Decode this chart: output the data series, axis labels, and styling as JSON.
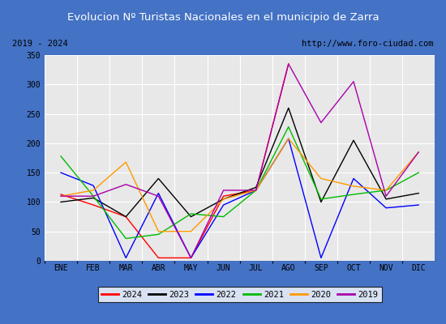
{
  "title": "Evolucion Nº Turistas Nacionales en el municipio de Zarra",
  "subtitle_left": "2019 - 2024",
  "subtitle_right": "http://www.foro-ciudad.com",
  "months": [
    "ENE",
    "FEB",
    "MAR",
    "ABR",
    "MAY",
    "JUN",
    "JUL",
    "AGO",
    "SEP",
    "OCT",
    "NOV",
    "DIC"
  ],
  "series": {
    "2024": [
      113,
      95,
      75,
      5,
      5,
      110,
      120,
      335,
      null,
      null,
      null,
      null
    ],
    "2023": [
      100,
      107,
      75,
      140,
      75,
      105,
      125,
      260,
      100,
      205,
      105,
      115
    ],
    "2022": [
      150,
      128,
      5,
      115,
      5,
      95,
      120,
      208,
      5,
      140,
      90,
      95
    ],
    "2021": [
      178,
      110,
      38,
      45,
      80,
      75,
      120,
      228,
      105,
      113,
      120,
      150
    ],
    "2020": [
      110,
      120,
      168,
      50,
      50,
      105,
      120,
      208,
      140,
      127,
      120,
      185
    ],
    "2019": [
      110,
      110,
      130,
      110,
      5,
      120,
      120,
      335,
      235,
      305,
      110,
      185
    ]
  },
  "colors": {
    "2024": "#ff0000",
    "2023": "#000000",
    "2022": "#0000ff",
    "2021": "#00bb00",
    "2020": "#ff9900",
    "2019": "#aa00aa"
  },
  "ylim": [
    0,
    350
  ],
  "yticks": [
    0,
    50,
    100,
    150,
    200,
    250,
    300,
    350
  ],
  "title_bgcolor": "#4472c4",
  "title_color": "#ffffff",
  "plot_bgcolor": "#e8e8e8",
  "border_color": "#4472c4",
  "subtitle_bgcolor": "#ffffff"
}
